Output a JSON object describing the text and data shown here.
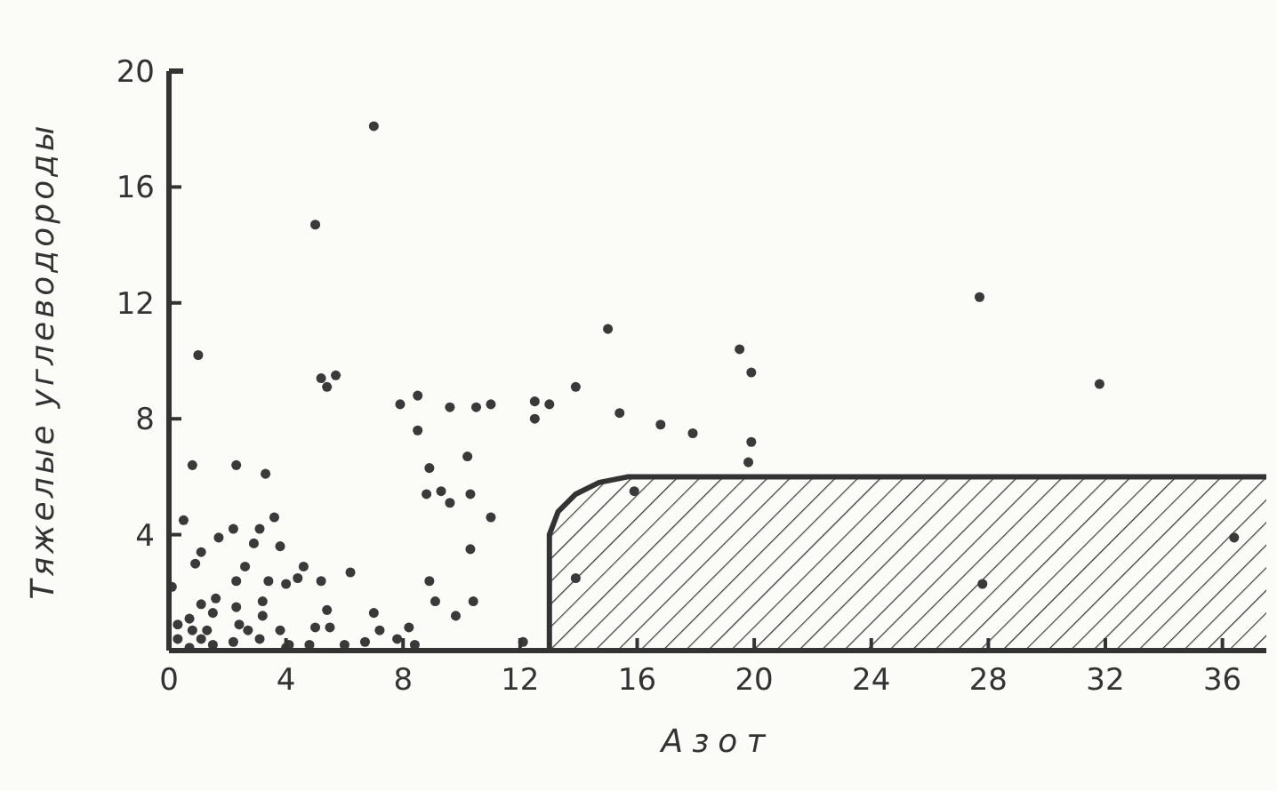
{
  "chart_data": {
    "type": "scatter",
    "xlabel": "Азот",
    "ylabel": "Тяжелые углеводороды",
    "xlim": [
      0,
      37.5
    ],
    "ylim": [
      0,
      20
    ],
    "xticks": [
      0,
      4,
      8,
      12,
      16,
      20,
      24,
      28,
      32,
      36
    ],
    "yticks": [
      4,
      8,
      12,
      16,
      20
    ],
    "grid": false,
    "series": [
      {
        "type": "area",
        "color": "#333333",
        "x": [
          13,
          13,
          13.3,
          13.9,
          14.7,
          15.7,
          37.5
        ],
        "values": [
          0,
          4,
          4.8,
          5.4,
          5.8,
          6,
          6
        ]
      },
      {
        "color": "#3a3a3a",
        "marker": "circle",
        "x": [
          7.0,
          5.0,
          1.0,
          5.2,
          5.4,
          5.7,
          7.9,
          8.5,
          9.6,
          10.5,
          11.0,
          12.5,
          13.0,
          13.9,
          12.5,
          8.5,
          0.8,
          2.3,
          3.3,
          8.9,
          10.2,
          0.5,
          8.8,
          9.3,
          9.6,
          10.3,
          11.0,
          3.6,
          2.2,
          3.1,
          1.7,
          2.9,
          3.8,
          10.3,
          1.1,
          0.9,
          2.6,
          4.6,
          6.2,
          4.4,
          3.4,
          2.3,
          4.0,
          5.2,
          8.9,
          0.1,
          9.1,
          10.4,
          1.6,
          1.1,
          2.3,
          3.2,
          1.5,
          3.2,
          5.4,
          7.0,
          9.8,
          0.3,
          0.7,
          0.8,
          1.3,
          2.4,
          2.7,
          3.1,
          3.8,
          5.0,
          5.5,
          7.2,
          8.2,
          7.8,
          0.3,
          1.1,
          1.5,
          0.7,
          2.2,
          4.1,
          4.0,
          4.8,
          6.0,
          6.7,
          8.4,
          12.1,
          13.9,
          27.7,
          15.0,
          19.5,
          19.9,
          31.8,
          15.4,
          16.8,
          17.9,
          19.9,
          19.8,
          15.9,
          27.8,
          36.4
        ],
        "values": [
          18.1,
          14.7,
          10.2,
          9.4,
          9.1,
          9.5,
          8.5,
          8.8,
          8.4,
          8.4,
          8.5,
          8.6,
          8.5,
          9.1,
          8.0,
          7.6,
          6.4,
          6.4,
          6.1,
          6.3,
          6.7,
          4.5,
          5.4,
          5.5,
          5.1,
          5.4,
          4.6,
          4.6,
          4.2,
          4.2,
          3.9,
          3.7,
          3.6,
          3.5,
          3.4,
          3.0,
          2.9,
          2.9,
          2.7,
          2.5,
          2.4,
          2.4,
          2.3,
          2.4,
          2.4,
          2.2,
          1.7,
          1.7,
          1.8,
          1.6,
          1.5,
          1.7,
          1.3,
          1.2,
          1.4,
          1.3,
          1.2,
          0.9,
          1.1,
          0.7,
          0.7,
          0.9,
          0.7,
          0.4,
          0.7,
          0.8,
          0.8,
          0.7,
          0.8,
          0.4,
          0.4,
          0.4,
          0.2,
          0.1,
          0.3,
          0.2,
          0.1,
          0.2,
          0.2,
          0.3,
          0.2,
          0.3,
          2.5,
          12.2,
          11.1,
          10.4,
          9.6,
          9.2,
          8.2,
          7.8,
          7.5,
          7.2,
          6.5,
          5.5,
          2.3,
          3.9
        ]
      }
    ]
  }
}
